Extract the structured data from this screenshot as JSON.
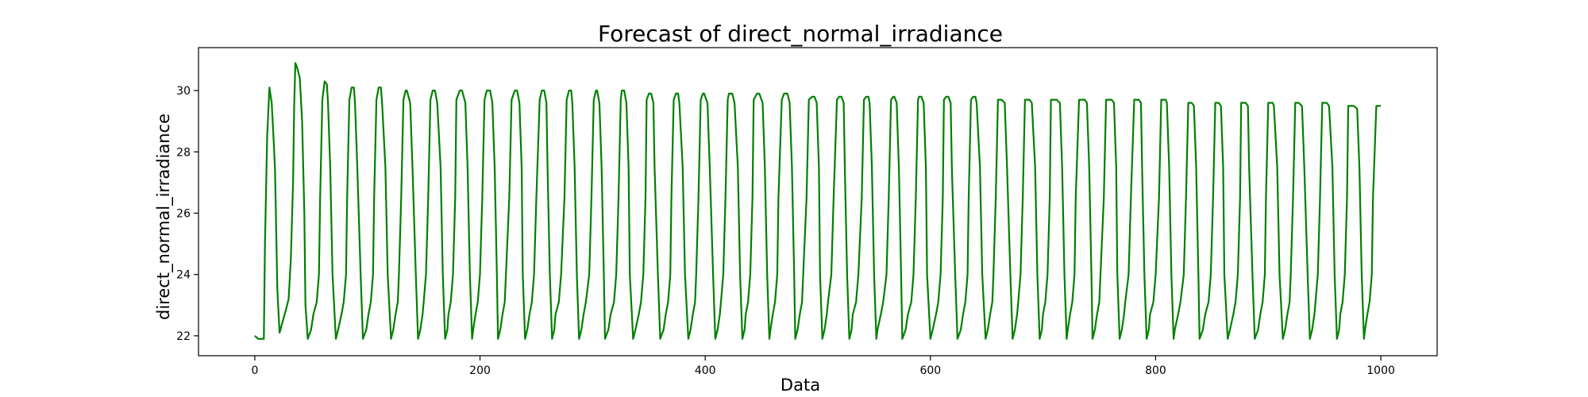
{
  "chart_data": {
    "type": "line",
    "title": "Forecast of direct_normal_irradiance",
    "xlabel": "Data",
    "ylabel": "direct_normal_irradiance",
    "xlim": [
      -50,
      1050
    ],
    "ylim": [
      21.35,
      31.4
    ],
    "xticks": [
      0,
      200,
      400,
      600,
      800,
      1000
    ],
    "yticks": [
      22,
      24,
      26,
      28,
      30
    ],
    "grid": false,
    "line_color": "#008000",
    "series": [
      {
        "name": "",
        "x": [
          0,
          3,
          5,
          8,
          9,
          11,
          13,
          15,
          17,
          18,
          20,
          22,
          25,
          28,
          30,
          32,
          34,
          35,
          36,
          38,
          40,
          42,
          44,
          45,
          47,
          50,
          52,
          55,
          57,
          58,
          60,
          62,
          64,
          65,
          67,
          69,
          72,
          74,
          77,
          79,
          81,
          82,
          84,
          86,
          88,
          89,
          91,
          94,
          96,
          99,
          101,
          103,
          105,
          106,
          108,
          110,
          112,
          113,
          116,
          118,
          121,
          123,
          125,
          127,
          128,
          130,
          132,
          134,
          135,
          138,
          140,
          143,
          145,
          147,
          149,
          150,
          152,
          154,
          156,
          158,
          160,
          162,
          165,
          167,
          169,
          171,
          172,
          174,
          176,
          178,
          179,
          182,
          184,
          187,
          189,
          191,
          193,
          194,
          196,
          198,
          200,
          202,
          204,
          206,
          209,
          211,
          213,
          215,
          216,
          218,
          220,
          222,
          223,
          226,
          228,
          231,
          233,
          235,
          237,
          238,
          240,
          242,
          244,
          246,
          248,
          250,
          253,
          255,
          257,
          259,
          260,
          262,
          264,
          266,
          267,
          270,
          272,
          275,
          277,
          279,
          281,
          282,
          284,
          286,
          288,
          290,
          292,
          294,
          297,
          299,
          301,
          303,
          304,
          306,
          308,
          310,
          311,
          314,
          316,
          319,
          321,
          323,
          325,
          326,
          328,
          330,
          332,
          333,
          336,
          338,
          341,
          343,
          345,
          347,
          348,
          350,
          352,
          354,
          355,
          358,
          360,
          363,
          365,
          367,
          369,
          370,
          372,
          374,
          376,
          377,
          380,
          382,
          385,
          387,
          389,
          391,
          392,
          394,
          396,
          398,
          399,
          402,
          404,
          407,
          409,
          411,
          413,
          414,
          416,
          418,
          420,
          421,
          424,
          426,
          429,
          431,
          433,
          435,
          436,
          438,
          440,
          442,
          443,
          446,
          448,
          451,
          453,
          455,
          457,
          458,
          460,
          462,
          464,
          465,
          468,
          470,
          473,
          475,
          477,
          479,
          480,
          482,
          484,
          486,
          487,
          490,
          492,
          495,
          497,
          499,
          501,
          502,
          504,
          506,
          508,
          509,
          512,
          514,
          517,
          519,
          521,
          523,
          524,
          526,
          528,
          530,
          531,
          534,
          536,
          539,
          541,
          543,
          545,
          546,
          548,
          550,
          552,
          553,
          556,
          558,
          561,
          563,
          565,
          567,
          568,
          570,
          572,
          574,
          575,
          578,
          580,
          583,
          585,
          587,
          589,
          590,
          592,
          594,
          596,
          597,
          600,
          602,
          605,
          607,
          609,
          611,
          612,
          614,
          616,
          618,
          619,
          622,
          624,
          627,
          629,
          631,
          633,
          634,
          636,
          638,
          640,
          641,
          644,
          646,
          649,
          651,
          653,
          655,
          656,
          658,
          660,
          662,
          663,
          666,
          668,
          671,
          673,
          675,
          677,
          678,
          680,
          682,
          684,
          685,
          688,
          690,
          693,
          695,
          697,
          699,
          700,
          702,
          704,
          706,
          707,
          710,
          712,
          715,
          717,
          719,
          721,
          722,
          724,
          726,
          728,
          729,
          732,
          734,
          737,
          739,
          741,
          743,
          744,
          746,
          748,
          750,
          751,
          754,
          756,
          759,
          761,
          763,
          765,
          766,
          768,
          770,
          772,
          773,
          776,
          778,
          781,
          783,
          785,
          787,
          788,
          790,
          792,
          794,
          795,
          798,
          800,
          803,
          805,
          807,
          809,
          810,
          812,
          814,
          816,
          817,
          820,
          822,
          825,
          827,
          829,
          831,
          832,
          834,
          836,
          838,
          839,
          842,
          844,
          847,
          849,
          851,
          853,
          854,
          856,
          858,
          860,
          861,
          864,
          866,
          869,
          871,
          873,
          875,
          876,
          878,
          880,
          882,
          883,
          886,
          888,
          891,
          893,
          895,
          897,
          898,
          900,
          902,
          904,
          905,
          908,
          910,
          913,
          915,
          917,
          919,
          920,
          922,
          924,
          926,
          927,
          930,
          932,
          935,
          937,
          939,
          941,
          942,
          944,
          946,
          948,
          949,
          952,
          954,
          957,
          959,
          961,
          963,
          964,
          966,
          968,
          970,
          971,
          974,
          976,
          979,
          981,
          983,
          985,
          986,
          988,
          990,
          992,
          993,
          996,
          998,
          1000
        ],
        "y": [
          22.0,
          21.9,
          21.9,
          21.9,
          25.0,
          28.5,
          30.1,
          29.6,
          28.2,
          27.4,
          23.5,
          22.1,
          22.5,
          22.9,
          23.2,
          24.5,
          27.0,
          29.5,
          30.9,
          30.7,
          30.4,
          29.0,
          26.0,
          23.0,
          21.9,
          22.2,
          22.7,
          23.1,
          24.0,
          26.5,
          29.7,
          30.3,
          30.2,
          29.6,
          27.5,
          24.0,
          21.9,
          22.2,
          22.7,
          23.1,
          24.0,
          26.5,
          29.7,
          30.1,
          30.1,
          29.6,
          27.5,
          24.0,
          21.9,
          22.2,
          22.7,
          23.1,
          24.0,
          26.5,
          29.7,
          30.1,
          30.1,
          29.6,
          27.5,
          24.0,
          21.9,
          22.2,
          22.7,
          23.1,
          24.0,
          26.5,
          29.7,
          30.0,
          30.0,
          29.6,
          27.5,
          24.0,
          21.9,
          22.2,
          22.7,
          23.1,
          24.0,
          26.5,
          29.7,
          30.0,
          30.0,
          29.6,
          27.5,
          24.0,
          21.9,
          22.2,
          22.7,
          23.1,
          24.0,
          26.5,
          29.7,
          30.0,
          30.0,
          29.6,
          27.5,
          24.0,
          21.9,
          22.2,
          22.7,
          23.1,
          24.0,
          26.5,
          29.7,
          30.0,
          30.0,
          29.6,
          27.5,
          24.0,
          21.9,
          22.2,
          22.7,
          23.1,
          24.0,
          26.5,
          29.7,
          30.0,
          30.0,
          29.6,
          27.5,
          24.0,
          21.9,
          22.2,
          22.7,
          23.1,
          24.0,
          26.5,
          29.7,
          30.0,
          30.0,
          29.6,
          27.5,
          24.0,
          21.9,
          22.2,
          22.7,
          23.1,
          24.0,
          26.5,
          29.7,
          30.0,
          30.0,
          29.6,
          27.5,
          24.0,
          21.9,
          22.2,
          22.7,
          23.1,
          24.0,
          26.5,
          29.7,
          30.0,
          30.0,
          29.6,
          27.5,
          24.0,
          21.9,
          22.2,
          22.7,
          23.1,
          24.0,
          26.5,
          29.7,
          30.0,
          30.0,
          29.6,
          27.5,
          24.0,
          21.9,
          22.2,
          22.7,
          23.1,
          24.0,
          26.5,
          29.7,
          29.9,
          29.9,
          29.6,
          27.5,
          24.0,
          21.9,
          22.2,
          22.7,
          23.1,
          24.0,
          26.5,
          29.7,
          29.9,
          29.9,
          29.6,
          27.5,
          24.0,
          21.9,
          22.2,
          22.7,
          23.1,
          24.0,
          26.5,
          29.7,
          29.9,
          29.9,
          29.6,
          27.5,
          24.0,
          21.9,
          22.2,
          22.7,
          23.1,
          24.0,
          26.5,
          29.7,
          29.9,
          29.9,
          29.6,
          27.5,
          24.0,
          21.9,
          22.2,
          22.7,
          23.1,
          24.0,
          26.5,
          29.7,
          29.9,
          29.9,
          29.6,
          27.5,
          24.0,
          21.9,
          22.2,
          22.7,
          23.1,
          24.0,
          26.5,
          29.7,
          29.9,
          29.9,
          29.6,
          27.5,
          24.0,
          21.9,
          22.2,
          22.7,
          23.1,
          24.0,
          26.5,
          29.7,
          29.8,
          29.8,
          29.6,
          27.5,
          24.0,
          21.9,
          22.2,
          22.7,
          23.1,
          24.0,
          26.5,
          29.7,
          29.8,
          29.8,
          29.6,
          27.5,
          24.0,
          21.9,
          22.2,
          22.7,
          23.1,
          24.0,
          26.5,
          29.7,
          29.8,
          29.8,
          29.6,
          27.5,
          24.0,
          21.9,
          22.2,
          22.7,
          23.1,
          24.0,
          26.5,
          29.7,
          29.8,
          29.8,
          29.6,
          27.5,
          24.0,
          21.9,
          22.2,
          22.7,
          23.1,
          24.0,
          26.5,
          29.7,
          29.8,
          29.8,
          29.6,
          27.5,
          24.0,
          21.9,
          22.2,
          22.7,
          23.1,
          24.0,
          26.5,
          29.7,
          29.8,
          29.8,
          29.6,
          27.5,
          24.0,
          21.9,
          22.2,
          22.7,
          23.1,
          24.0,
          26.5,
          29.7,
          29.8,
          29.8,
          29.6,
          27.5,
          24.0,
          21.9,
          22.2,
          22.7,
          23.1,
          24.0,
          26.5,
          29.7,
          29.7,
          29.7,
          29.6,
          27.5,
          24.0,
          21.9,
          22.2,
          22.7,
          23.1,
          24.0,
          26.5,
          29.7,
          29.7,
          29.7,
          29.6,
          27.5,
          24.0,
          21.9,
          22.2,
          22.7,
          23.1,
          24.0,
          26.5,
          29.7,
          29.7,
          29.7,
          29.6,
          27.5,
          24.0,
          21.9,
          22.2,
          22.7,
          23.1,
          24.0,
          26.5,
          29.7,
          29.7,
          29.7,
          29.6,
          27.5,
          24.0,
          21.9,
          22.2,
          22.7,
          23.1,
          24.0,
          26.5,
          29.7,
          29.7,
          29.7,
          29.6,
          27.5,
          24.0,
          21.9,
          22.2,
          22.7,
          23.1,
          24.0,
          26.5,
          29.7,
          29.7,
          29.7,
          29.6,
          27.5,
          24.0,
          21.9,
          22.2,
          22.7,
          23.1,
          24.0,
          26.5,
          29.7,
          29.7,
          29.7,
          29.6,
          27.5,
          24.0,
          21.9,
          22.2,
          22.7,
          23.1,
          24.0,
          26.5,
          29.6,
          29.6,
          29.6,
          29.5,
          27.5,
          24.0,
          21.9,
          22.2,
          22.7,
          23.1,
          24.0,
          26.5,
          29.6,
          29.6,
          29.6,
          29.5,
          27.5,
          24.0,
          21.9,
          22.2,
          22.7,
          23.1,
          24.0,
          26.5,
          29.6,
          29.6,
          29.6,
          29.5,
          27.5,
          24.0,
          21.9,
          22.2,
          22.7,
          23.1,
          24.0,
          26.5,
          29.6,
          29.6,
          29.6,
          29.5,
          27.5,
          24.0,
          21.9,
          22.2,
          22.7,
          23.1,
          24.0,
          26.5,
          29.6,
          29.6,
          29.6,
          29.5,
          27.5,
          24.0,
          21.9,
          22.2,
          22.7,
          23.1,
          24.0,
          26.5,
          29.6,
          29.6,
          29.6,
          29.5,
          27.5,
          24.0,
          21.9,
          22.2,
          22.7,
          23.1,
          24.0,
          26.5,
          29.5,
          29.5,
          29.5,
          29.4,
          27.5,
          24.0,
          21.9,
          22.2,
          22.7,
          23.1,
          24.0,
          26.5,
          29.5,
          29.5,
          29.5
        ]
      }
    ]
  }
}
